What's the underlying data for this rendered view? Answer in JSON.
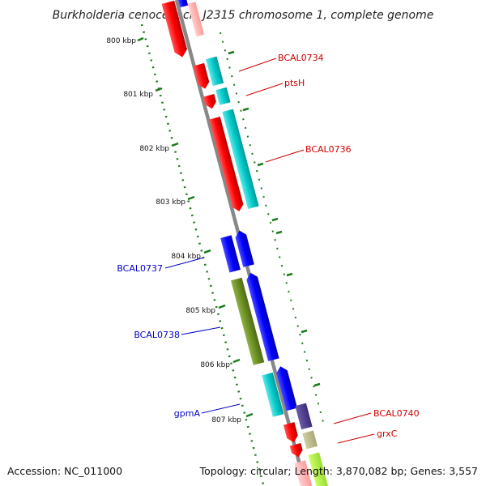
{
  "title": "Burkholderia cenocepacia J2315 chromosome 1, complete genome",
  "footer": {
    "accession": "Accession: NC_011000",
    "summary": "Topology: circular; Length: 3,870,082 bp; Genes: 3,557"
  },
  "ticks": [
    "800 kbp",
    "801 kbp",
    "802 kbp",
    "803 kbp",
    "804 kbp",
    "805 kbp",
    "806 kbp",
    "807 kbp"
  ],
  "gene_labels": {
    "forward": [
      "BCAL0734",
      "ptsH",
      "BCAL0736",
      "BCAL0740",
      "grxC"
    ],
    "reverse": [
      "BCAL0737",
      "BCAL0738",
      "gpmA"
    ]
  },
  "colors": {
    "forward_label": "#cc0000",
    "reverse_label": "#0000cc",
    "cds_forward": "#ff0000",
    "cds_reverse": "#0000ff",
    "feature_cyan": "#00cccc",
    "feature_olive": "#6b8e23",
    "backbone": "#888888",
    "tick_green": "#1a7a1a"
  }
}
